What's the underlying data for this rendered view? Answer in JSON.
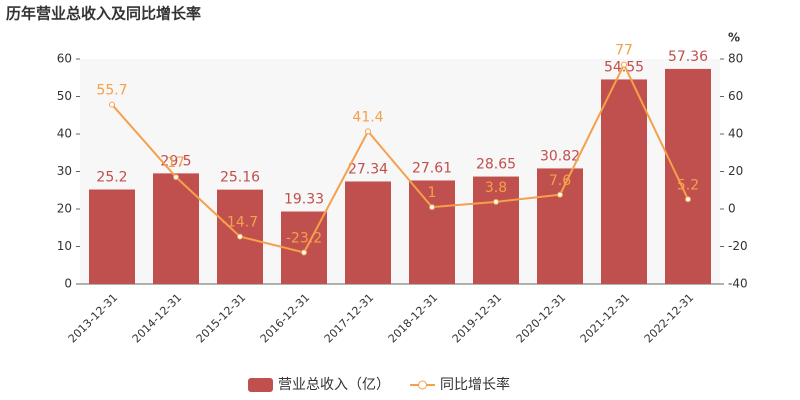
{
  "chart_data": {
    "type": "bar",
    "title": "历年营业总收入及同比增长率",
    "categories": [
      "2013-12-31",
      "2014-12-31",
      "2015-12-31",
      "2016-12-31",
      "2017-12-31",
      "2018-12-31",
      "2019-12-31",
      "2020-12-31",
      "2021-12-31",
      "2022-12-31"
    ],
    "series": [
      {
        "name": "营业总收入（亿）",
        "type": "bar",
        "color": "#c0504d",
        "values": [
          25.2,
          29.5,
          25.16,
          19.33,
          27.34,
          27.61,
          28.65,
          30.82,
          54.55,
          57.36
        ]
      },
      {
        "name": "同比增长率",
        "type": "line",
        "axis": "y2",
        "color": "#f5a04a",
        "values": [
          55.7,
          17,
          -14.7,
          -23.2,
          41.4,
          1,
          3.8,
          7.6,
          77,
          5.2
        ]
      }
    ],
    "ylim": [
      0,
      60
    ],
    "yticks": [
      0,
      10,
      20,
      30,
      40,
      50,
      60
    ],
    "y2lim": [
      -40,
      80
    ],
    "y2ticks": [
      -40,
      -20,
      0,
      20,
      40,
      60,
      80
    ],
    "y2label": "%",
    "legend": "bottom"
  }
}
